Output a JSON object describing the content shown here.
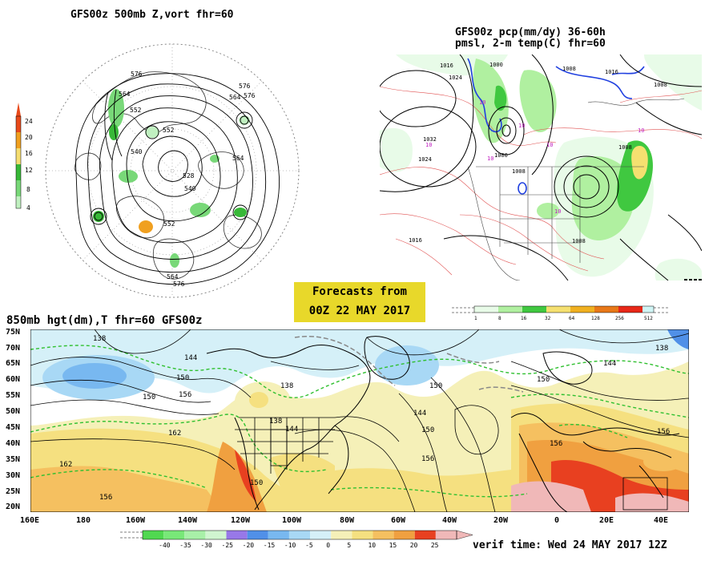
{
  "top_left": {
    "title": "GFS00z  500mb Z,vort    fhr=60",
    "contour_labels": [
      "576",
      "564",
      "552",
      "540",
      "528",
      "552",
      "540",
      "564",
      "576",
      "564",
      "576",
      "552",
      "564",
      "576"
    ],
    "colorbar": {
      "labels": [
        "24",
        "20",
        "16",
        "12",
        "8",
        "4"
      ],
      "colors": [
        "#e84a1a",
        "#f0a020",
        "#f5dd70",
        "#38b838",
        "#78d878",
        "#c0f0c0"
      ]
    }
  },
  "top_right": {
    "title_line1": "GFS00z pcp(mm/dy) 36-60h",
    "title_line2": "pmsl, 2-m temp(C)  fhr=60",
    "pressure_labels": [
      "1016",
      "1024",
      "1032",
      "1024",
      "1000",
      "1008",
      "1000",
      "1008",
      "1016",
      "1008",
      "1008",
      "1008",
      "1016"
    ],
    "temp_labels": [
      "10",
      "10",
      "10",
      "10",
      "10",
      "10",
      "10"
    ],
    "colorbar": {
      "labels": [
        "1",
        "8",
        "16",
        "32",
        "64",
        "128",
        "256",
        "512"
      ],
      "colors": [
        "#e8fbe8",
        "#b0f0a0",
        "#40c840",
        "#f5e070",
        "#f0b020",
        "#e87818",
        "#e82818",
        "#d0f5f5"
      ]
    }
  },
  "banner": {
    "line1": "Forecasts from",
    "line2": "00Z 22 MAY 2017"
  },
  "bottom": {
    "title": "850mb hgt(dm),T  fhr=60 GFS00z",
    "lat_labels": [
      "75N",
      "70N",
      "65N",
      "60N",
      "55N",
      "50N",
      "45N",
      "40N",
      "35N",
      "30N",
      "25N",
      "20N"
    ],
    "lon_labels": [
      "160E",
      "180",
      "160W",
      "140W",
      "120W",
      "100W",
      "80W",
      "60W",
      "40W",
      "20W",
      "0",
      "20E",
      "40E"
    ],
    "contour_labels": [
      "138",
      "144",
      "150",
      "156",
      "162",
      "162",
      "156",
      "138",
      "138",
      "144",
      "150",
      "156",
      "150",
      "144",
      "150",
      "156",
      "138",
      "144",
      "150",
      "156",
      "150"
    ],
    "colorbar": {
      "labels": [
        "-40",
        "-35",
        "-30",
        "-25",
        "-20",
        "-15",
        "-10",
        "-5",
        "0",
        "5",
        "10",
        "15",
        "20",
        "25"
      ],
      "colors": [
        "#50d850",
        "#78e878",
        "#a8f0a8",
        "#d0f5d0",
        "#9878e8",
        "#5090e8",
        "#78b8f0",
        "#a8d8f5",
        "#d5f0f8",
        "#f5f0b8",
        "#f5e080",
        "#f5c060",
        "#f0a040",
        "#e84020",
        "#f0b8b8"
      ]
    }
  },
  "verif_time": "verif time: Wed 24 MAY 2017 12Z"
}
